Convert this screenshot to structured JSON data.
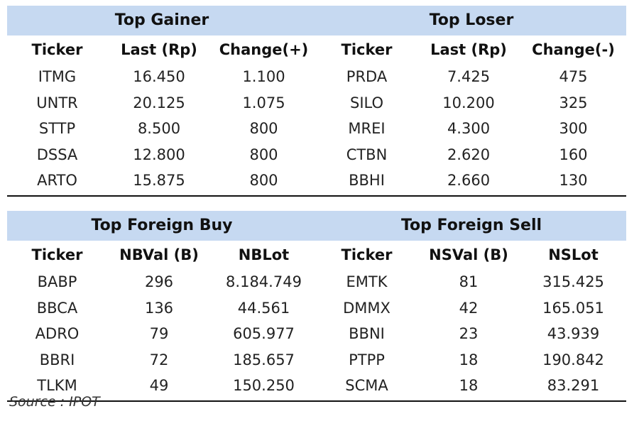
{
  "top_section": {
    "left_title": "Top Gainer",
    "right_title": "Top Loser",
    "headers": [
      "Ticker",
      "Last (Rp)",
      "Change(+)",
      "Ticker",
      "Last (Rp)",
      "Change(-)"
    ],
    "rows": [
      [
        "ITMG",
        "16.450",
        "1.100",
        "PRDA",
        "7.425",
        "475"
      ],
      [
        "UNTR",
        "20.125",
        "1.075",
        "SILO",
        "10.200",
        "325"
      ],
      [
        "STTP",
        "8.500",
        "800",
        "MREI",
        "4.300",
        "300"
      ],
      [
        "DSSA",
        "12.800",
        "800",
        "CTBN",
        "2.620",
        "160"
      ],
      [
        "ARTO",
        "15.875",
        "800",
        "BBHI",
        "2.660",
        "130"
      ]
    ]
  },
  "bottom_section": {
    "left_title": "Top Foreign Buy",
    "right_title": "Top Foreign Sell",
    "headers": [
      "Ticker",
      "NBVal (B)",
      "NBLot",
      "Ticker",
      "NSVal (B)",
      "NSLot"
    ],
    "rows": [
      [
        "BABP",
        "296",
        "8.184.749",
        "EMTK",
        "81",
        "315.425"
      ],
      [
        "BBCA",
        "136",
        "44.561",
        "DMMX",
        "42",
        "165.051"
      ],
      [
        "ADRO",
        "79",
        "605.977",
        "BBNI",
        "23",
        "43.939"
      ],
      [
        "BBRI",
        "72",
        "185.657",
        "PTPP",
        "18",
        "190.842"
      ],
      [
        "TLKM",
        "49",
        "150.250",
        "SCMA",
        "18",
        "83.291"
      ]
    ]
  },
  "source": "Source : IPOT",
  "colors": {
    "header_band": "#c6d9f1",
    "rule": "#111111"
  }
}
